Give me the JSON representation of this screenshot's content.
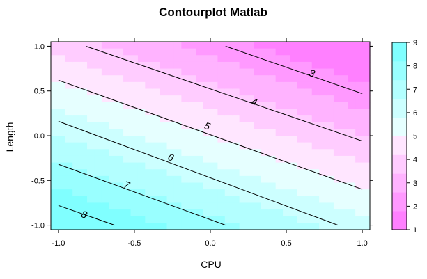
{
  "chart_data": {
    "type": "heatmap",
    "title": "Contourplot Matlab",
    "xlabel": "CPU",
    "ylabel": "Length",
    "xlim": [
      -1.05,
      1.05
    ],
    "ylim": [
      -1.05,
      1.05
    ],
    "x_ticks": [
      -1.0,
      -0.5,
      0.0,
      0.5,
      1.0
    ],
    "x_tick_labels": [
      "-1.0",
      "-0.5",
      "0.0",
      "0.5",
      "1.0"
    ],
    "y_ticks": [
      -1.0,
      -0.5,
      0.0,
      0.5,
      1.0
    ],
    "y_tick_labels": [
      "-1.0",
      "-0.5",
      "0.0",
      "0.5",
      "1.0"
    ],
    "colorbar": {
      "range": [
        1,
        9
      ],
      "ticks": [
        1,
        2,
        3,
        4,
        5,
        6,
        7,
        8,
        9
      ],
      "tick_labels": [
        "1",
        "2",
        "3",
        "4",
        "5",
        "6",
        "7",
        "8",
        "9"
      ],
      "colors": [
        "#ff80ff",
        "#ff99ff",
        "#ffb3ff",
        "#ffccff",
        "#ffe6ff",
        "#e6ffff",
        "#ccffff",
        "#b3ffff",
        "#99ffff",
        "#80ffff"
      ]
    },
    "contours": [
      {
        "level": 3,
        "label": "3",
        "points": [
          [
            0.1,
            1.0
          ],
          [
            1.0,
            0.47
          ]
        ],
        "label_at": [
          0.67,
          0.7
        ]
      },
      {
        "level": 4,
        "label": "4",
        "points": [
          [
            -0.82,
            1.0
          ],
          [
            1.0,
            -0.06
          ]
        ],
        "label_at": [
          0.29,
          0.38
        ]
      },
      {
        "level": 5,
        "label": "5",
        "points": [
          [
            -1.0,
            0.62
          ],
          [
            1.0,
            -0.6
          ]
        ],
        "label_at": [
          -0.02,
          0.11
        ]
      },
      {
        "level": 6,
        "label": "6",
        "points": [
          [
            -1.0,
            0.16
          ],
          [
            0.84,
            -1.0
          ]
        ],
        "label_at": [
          -0.26,
          -0.24
        ]
      },
      {
        "level": 7,
        "label": "7",
        "points": [
          [
            -1.0,
            -0.32
          ],
          [
            0.1,
            -1.0
          ]
        ],
        "label_at": [
          -0.55,
          -0.55
        ]
      },
      {
        "level": 8,
        "label": "8",
        "points": [
          [
            -1.0,
            -0.78
          ],
          [
            -0.63,
            -1.0
          ]
        ],
        "label_at": [
          -0.83,
          -0.88
        ]
      }
    ]
  }
}
